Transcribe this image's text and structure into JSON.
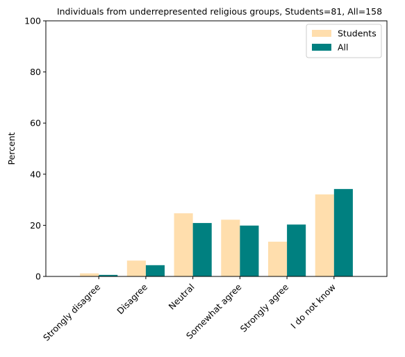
{
  "chart_data": {
    "type": "bar",
    "title": "Individuals from underrepresented religious groups, Students=81, All=158",
    "ylabel": "Percent",
    "xlabel": "",
    "ylim": [
      0,
      100
    ],
    "yticks": [
      0,
      20,
      40,
      60,
      80,
      100
    ],
    "grid": false,
    "legend_position": "top-right",
    "categories": [
      "Strongly disagree",
      "Disagree",
      "Neutral",
      "Somewhat agree",
      "Strongly agree",
      "I do not know"
    ],
    "series": [
      {
        "name": "Students",
        "color": "#FFDEAD",
        "values": [
          1.2,
          6.2,
          24.7,
          22.2,
          13.6,
          32.1
        ]
      },
      {
        "name": "All",
        "color": "#008080",
        "values": [
          0.6,
          4.4,
          20.9,
          19.9,
          20.3,
          34.2
        ]
      }
    ]
  }
}
